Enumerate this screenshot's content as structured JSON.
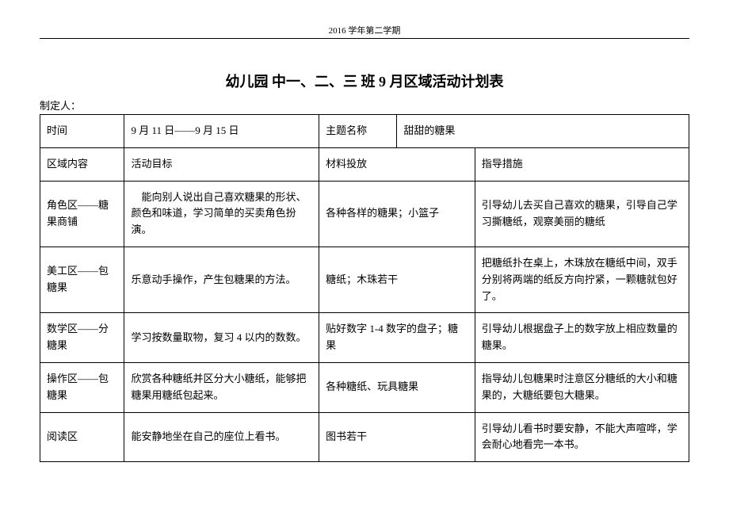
{
  "header": "2016 学年第二学期",
  "title": "幼儿园 中一、二、三 班 9 月区域活动计划表",
  "author_label": "制定人：",
  "row_meta": {
    "time_label": "时间",
    "time_value": "9 月 11 日——9 月 15 日",
    "topic_label": "主题名称",
    "topic_value": "甜甜的糖果"
  },
  "headers": {
    "area": "区域内容",
    "goal": "活动目标",
    "materials": "材料投放",
    "guidance": "指导措施"
  },
  "rows": [
    {
      "area": "角色区——糖果商铺",
      "goal": "　能向别人说出自己喜欢糖果的形状、颜色和味道，学习简单的买卖角色扮演。",
      "materials": "各种各样的糖果；小篮子",
      "guidance": "引导幼儿去买自己喜欢的糖果，引导自己学习撕糖纸，观察美丽的糖纸"
    },
    {
      "area": "美工区——包糖果",
      "goal": "乐意动手操作，产生包糖果的方法。",
      "materials": "糖纸；木珠若干",
      "guidance": "把糖纸扑在桌上，木珠放在糖纸中间，双手分别将两端的纸反方向拧紧，一颗糖就包好了。"
    },
    {
      "area": "数学区——分糖果",
      "goal": "学习按数量取物，复习 4 以内的数数。",
      "materials": "贴好数字 1-4 数字的盘子；糖果",
      "guidance": "引导幼儿根据盘子上的数字放上相应数量的糖果。"
    },
    {
      "area": "操作区——包糖果",
      "goal": "欣赏各种糖纸并区分大小糖纸，能够把糖果用糖纸包起来。",
      "materials": "各种糖纸、玩具糖果",
      "guidance": "指导幼儿包糖果时注意区分糖纸的大小和糖果的，大糖纸要包大糖果。"
    },
    {
      "area": "阅读区",
      "goal": "能安静地坐在自己的座位上看书。",
      "materials": "图书若干",
      "guidance": "引导幼儿看书时要安静，不能大声喧哗，学会耐心地看完一本书。"
    }
  ]
}
